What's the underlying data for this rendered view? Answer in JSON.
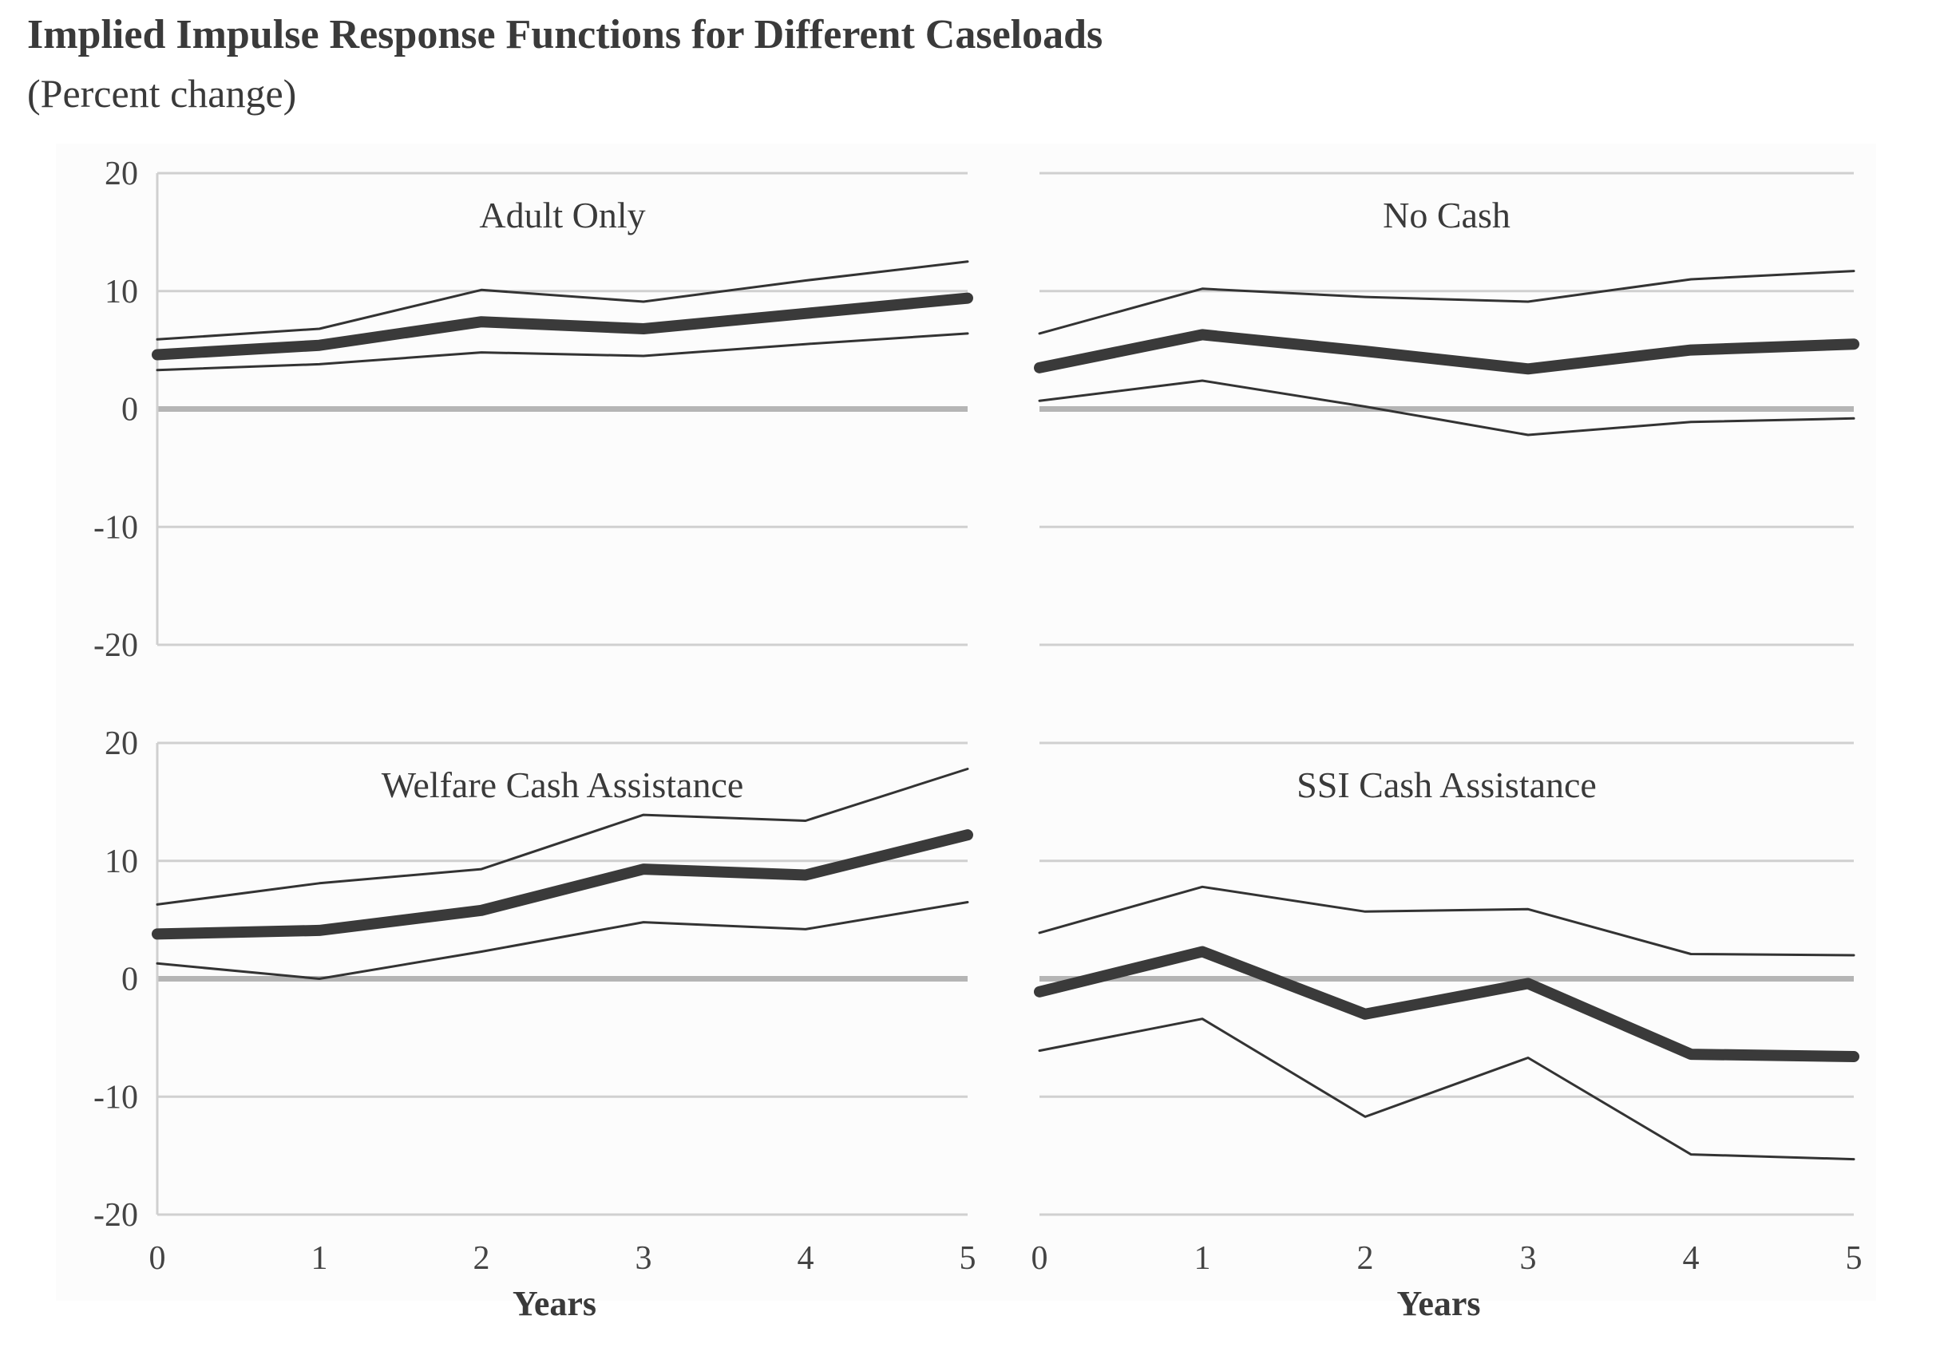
{
  "title": "Implied Impulse Response Functions for Different Caseloads",
  "subtitle": "(Percent change)",
  "chart_data": {
    "type": "line",
    "x": [
      0,
      1,
      2,
      3,
      4,
      5
    ],
    "x_ticks": [
      "0",
      "1",
      "2",
      "3",
      "4",
      "5"
    ],
    "y_ticks": [
      "20",
      "10",
      "0",
      "-10",
      "-20"
    ],
    "xlabel": "Years",
    "ylim": [
      -20,
      20
    ],
    "grid": true,
    "panels": [
      {
        "title": "Adult Only",
        "series": [
          {
            "role": "estimate",
            "values": [
              4.6,
              5.4,
              7.4,
              6.8,
              8.1,
              9.4
            ]
          },
          {
            "role": "upper",
            "values": [
              5.9,
              6.8,
              10.1,
              9.1,
              10.9,
              12.5
            ]
          },
          {
            "role": "lower",
            "values": [
              3.3,
              3.8,
              4.8,
              4.5,
              5.5,
              6.4
            ]
          }
        ]
      },
      {
        "title": "No Cash",
        "series": [
          {
            "role": "estimate",
            "values": [
              3.5,
              6.3,
              4.9,
              3.4,
              5.0,
              5.5
            ]
          },
          {
            "role": "upper",
            "values": [
              6.4,
              10.2,
              9.5,
              9.1,
              11.0,
              11.7
            ]
          },
          {
            "role": "lower",
            "values": [
              0.7,
              2.4,
              0.2,
              -2.2,
              -1.1,
              -0.8
            ]
          }
        ]
      },
      {
        "title": "Welfare Cash Assistance",
        "series": [
          {
            "role": "estimate",
            "values": [
              3.8,
              4.1,
              5.8,
              9.3,
              8.8,
              12.2
            ]
          },
          {
            "role": "upper",
            "values": [
              6.3,
              8.1,
              9.3,
              13.9,
              13.4,
              17.8
            ]
          },
          {
            "role": "lower",
            "values": [
              1.3,
              0.0,
              2.3,
              4.8,
              4.2,
              6.5
            ]
          }
        ]
      },
      {
        "title": "SSI Cash Assistance",
        "series": [
          {
            "role": "estimate",
            "values": [
              -1.1,
              2.3,
              -3.0,
              -0.4,
              -6.4,
              -6.6
            ]
          },
          {
            "role": "upper",
            "values": [
              3.9,
              7.8,
              5.7,
              5.9,
              2.1,
              2.0
            ]
          },
          {
            "role": "lower",
            "values": [
              -6.1,
              -3.4,
              -11.7,
              -6.7,
              -14.9,
              -15.3
            ]
          }
        ]
      }
    ]
  }
}
